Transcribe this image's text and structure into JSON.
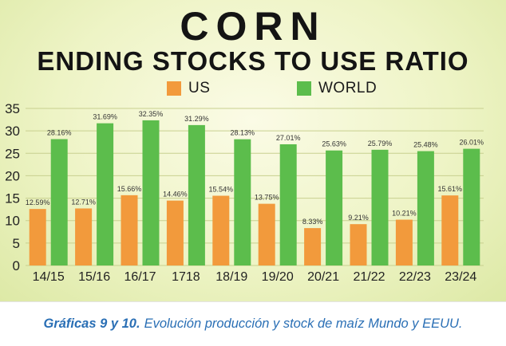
{
  "colors": {
    "us": "#f29a3c",
    "world": "#5cbd4c",
    "text": "#141414",
    "caption": "#2a6fb5"
  },
  "chart_data": {
    "type": "bar",
    "title": "CORN",
    "subtitle": "ENDING STOCKS TO USE RATIO",
    "categories": [
      "14/15",
      "15/16",
      "16/17",
      "1718",
      "18/19",
      "19/20",
      "20/21",
      "21/22",
      "22/23",
      "23/24"
    ],
    "series": [
      {
        "name": "US",
        "values": [
          12.59,
          12.71,
          15.66,
          14.46,
          15.54,
          13.75,
          8.33,
          9.21,
          10.21,
          15.61
        ],
        "labels": [
          "12.59%",
          "12.71%",
          "15.66%",
          "14.46%",
          "15.54%",
          "13.75%",
          "8.33%",
          "9.21%",
          "10.21%",
          "15.61%"
        ]
      },
      {
        "name": "WORLD",
        "values": [
          28.16,
          31.69,
          32.35,
          31.29,
          28.13,
          27.01,
          25.63,
          25.79,
          25.48,
          26.01
        ],
        "labels": [
          "28.16%",
          "31.69%",
          "32.35%",
          "31.29%",
          "28.13%",
          "27.01%",
          "25.63%",
          "25.79%",
          "25.48%",
          "26.01%"
        ]
      }
    ],
    "yticks": [
      0,
      5,
      10,
      15,
      20,
      25,
      30,
      35
    ],
    "ylim": [
      0,
      35
    ],
    "xlabel": "",
    "ylabel": "",
    "legend": "top-center",
    "grid": true
  },
  "caption": {
    "bold": "Gráficas 9 y 10.",
    "text": "Evolución producción y stock de maíz Mundo y EEUU."
  }
}
